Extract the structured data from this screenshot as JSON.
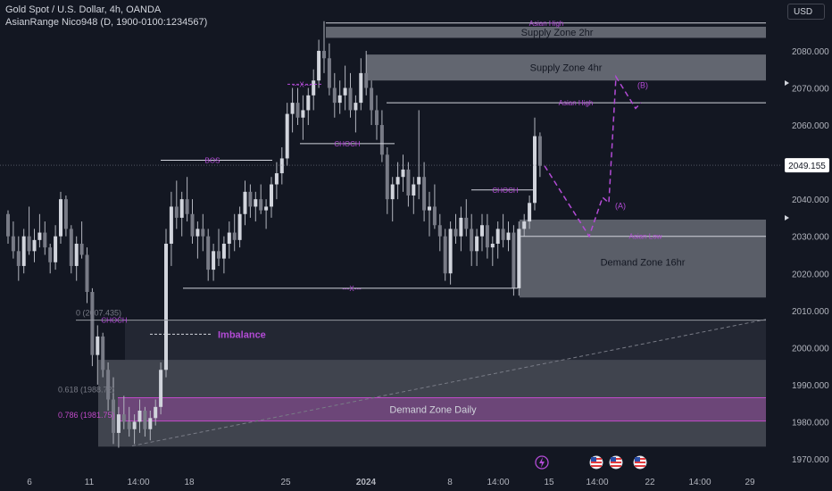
{
  "header": {
    "title": "Gold Spot / U.S. Dollar, 4h, OANDA",
    "indicator": "AsianRange Nico948 (D, 1900-0100:1234567)",
    "currency_button": "USD"
  },
  "colors": {
    "background": "#131722",
    "candle": "#b2b5be",
    "zone": "#ffffff",
    "annotation": "#b34bd6",
    "demand_daily": "#c04ac8",
    "price_label_bg": "#ffffff"
  },
  "chart_data": {
    "type": "candlestick",
    "x_ticks": [
      "6",
      "11",
      "14:00",
      "18",
      "25",
      "2024",
      "8",
      "14:00",
      "15",
      "14:00",
      "22",
      "14:00",
      "29"
    ],
    "y_ticks": [
      1970,
      1980,
      1990,
      2000,
      2010,
      2020,
      2030,
      2040,
      2050,
      2060,
      2070,
      2080
    ],
    "y_tick_labels": [
      "1970.000",
      "1980.000",
      "1990.000",
      "2000.000",
      "2010.000",
      "2020.000",
      "2030.000",
      "2040.000",
      "2050.000",
      "2060.000",
      "2070.000",
      "2080.000"
    ],
    "ylim": [
      1967,
      2090
    ],
    "current_price": 2049.155,
    "current_price_label": "2049.155",
    "candles": [
      [
        2036,
        2037,
        2028,
        2030
      ],
      [
        2030,
        2034,
        2024,
        2026
      ],
      [
        2026,
        2030,
        2018,
        2022
      ],
      [
        2022,
        2032,
        2020,
        2030
      ],
      [
        2030,
        2038,
        2025,
        2026
      ],
      [
        2026,
        2032,
        2023,
        2029
      ],
      [
        2029,
        2036,
        2027,
        2031
      ],
      [
        2031,
        2034,
        2025,
        2027
      ],
      [
        2027,
        2028,
        2020,
        2023
      ],
      [
        2023,
        2033,
        2021,
        2030
      ],
      [
        2030,
        2042,
        2028,
        2040
      ],
      [
        2040,
        2041,
        2030,
        2032
      ],
      [
        2032,
        2033,
        2020,
        2022
      ],
      [
        2022,
        2030,
        2018,
        2028
      ],
      [
        2028,
        2034,
        2024,
        2025
      ],
      [
        2025,
        2027,
        2012,
        2015
      ],
      [
        2015,
        2016,
        1995,
        1998
      ],
      [
        1998,
        2006,
        1990,
        2003
      ],
      [
        2003,
        2004,
        1992,
        1994
      ],
      [
        1994,
        1996,
        1983,
        1986
      ],
      [
        1986,
        1992,
        1974,
        1977
      ],
      [
        1977,
        1984,
        1973,
        1982
      ],
      [
        1982,
        1987,
        1978,
        1980
      ],
      [
        1980,
        1984,
        1976,
        1978
      ],
      [
        1978,
        1982,
        1974,
        1980
      ],
      [
        1980,
        1986,
        1977,
        1983
      ],
      [
        1983,
        1984,
        1976,
        1978
      ],
      [
        1978,
        1983,
        1975,
        1981
      ],
      [
        1981,
        1986,
        1979,
        1984
      ],
      [
        1984,
        1996,
        1982,
        1994
      ],
      [
        1994,
        2032,
        1992,
        2028
      ],
      [
        2028,
        2042,
        2022,
        2038
      ],
      [
        2038,
        2045,
        2032,
        2035
      ],
      [
        2035,
        2042,
        2030,
        2040
      ],
      [
        2040,
        2046,
        2034,
        2036
      ],
      [
        2036,
        2040,
        2028,
        2030
      ],
      [
        2030,
        2034,
        2024,
        2032
      ],
      [
        2032,
        2036,
        2026,
        2030
      ],
      [
        2030,
        2032,
        2018,
        2021
      ],
      [
        2021,
        2028,
        2018,
        2026
      ],
      [
        2026,
        2032,
        2022,
        2024
      ],
      [
        2024,
        2030,
        2020,
        2028
      ],
      [
        2028,
        2034,
        2024,
        2031
      ],
      [
        2031,
        2036,
        2026,
        2029
      ],
      [
        2029,
        2038,
        2027,
        2036
      ],
      [
        2036,
        2045,
        2033,
        2042
      ],
      [
        2042,
        2044,
        2035,
        2038
      ],
      [
        2038,
        2042,
        2034,
        2040
      ],
      [
        2040,
        2044,
        2036,
        2037
      ],
      [
        2037,
        2040,
        2032,
        2038
      ],
      [
        2038,
        2046,
        2035,
        2044
      ],
      [
        2044,
        2050,
        2040,
        2047
      ],
      [
        2047,
        2054,
        2044,
        2051
      ],
      [
        2051,
        2066,
        2049,
        2063
      ],
      [
        2063,
        2070,
        2058,
        2066
      ],
      [
        2066,
        2070,
        2060,
        2062
      ],
      [
        2062,
        2068,
        2056,
        2064
      ],
      [
        2064,
        2070,
        2060,
        2068
      ],
      [
        2068,
        2075,
        2064,
        2072
      ],
      [
        2072,
        2083,
        2070,
        2080
      ],
      [
        2080,
        2088,
        2074,
        2078
      ],
      [
        2078,
        2082,
        2068,
        2070
      ],
      [
        2070,
        2074,
        2062,
        2066
      ],
      [
        2066,
        2072,
        2063,
        2068
      ],
      [
        2068,
        2076,
        2064,
        2070
      ],
      [
        2070,
        2074,
        2062,
        2064
      ],
      [
        2064,
        2068,
        2058,
        2066
      ],
      [
        2066,
        2078,
        2064,
        2074
      ],
      [
        2074,
        2080,
        2068,
        2070
      ],
      [
        2070,
        2072,
        2060,
        2064
      ],
      [
        2064,
        2068,
        2056,
        2060
      ],
      [
        2060,
        2064,
        2050,
        2052
      ],
      [
        2052,
        2054,
        2036,
        2040
      ],
      [
        2040,
        2046,
        2034,
        2044
      ],
      [
        2044,
        2050,
        2040,
        2046
      ],
      [
        2046,
        2052,
        2042,
        2048
      ],
      [
        2048,
        2050,
        2038,
        2041
      ],
      [
        2041,
        2046,
        2036,
        2044
      ],
      [
        2044,
        2064,
        2040,
        2046
      ],
      [
        2046,
        2050,
        2034,
        2037
      ],
      [
        2037,
        2042,
        2030,
        2038
      ],
      [
        2038,
        2044,
        2032,
        2033
      ],
      [
        2033,
        2036,
        2026,
        2030
      ],
      [
        2030,
        2032,
        2018,
        2020
      ],
      [
        2020,
        2034,
        2017,
        2032
      ],
      [
        2032,
        2036,
        2028,
        2030
      ],
      [
        2030,
        2038,
        2026,
        2035
      ],
      [
        2035,
        2040,
        2030,
        2032
      ],
      [
        2032,
        2036,
        2022,
        2026
      ],
      [
        2026,
        2032,
        2022,
        2030
      ],
      [
        2030,
        2036,
        2026,
        2033
      ],
      [
        2033,
        2036,
        2024,
        2027
      ],
      [
        2027,
        2030,
        2022,
        2028
      ],
      [
        2028,
        2034,
        2024,
        2032
      ],
      [
        2032,
        2036,
        2027,
        2029
      ],
      [
        2029,
        2034,
        2026,
        2031
      ],
      [
        2031,
        2033,
        2014,
        2016
      ],
      [
        2016,
        2034,
        2014,
        2032
      ],
      [
        2032,
        2036,
        2030,
        2034
      ],
      [
        2034,
        2041,
        2032,
        2039
      ],
      [
        2039,
        2062,
        2037,
        2057
      ],
      [
        2057,
        2058,
        2046,
        2049
      ]
    ],
    "labels": {
      "asian_high_top": "Asian High",
      "supply_2hr": "Supply Zone 2hr",
      "supply_4hr": "Supply Zone 4hr",
      "asian_high_mid": "Asian High",
      "bos": "BOS",
      "choch_upper": "CHOCH",
      "x_upper": "---X---",
      "choch_right": "CHOCH",
      "demand_16hr": "Demand Zone 16hr",
      "asian_low": "Asian Low",
      "x_lower": "---X---",
      "fib_0": "0 (2007.435)",
      "choch_left": "CHOCH",
      "imbalance": "Imbalance",
      "fib_618": "0.618 (1988.72)",
      "fib_786": "0.786 (1981.75)",
      "demand_daily": "Demand Zone Daily",
      "wave_a": "(A)",
      "wave_b": "(B)"
    },
    "levels": {
      "asian_high_top": 2087.5,
      "supply_2hr": [
        2083.5,
        2086.5
      ],
      "supply_4hr": [
        2072,
        2079
      ],
      "asian_high_mid": 2066,
      "bos": 2050.5,
      "choch_upper": 2055,
      "x_upper": 2071,
      "choch_right": 2042.5,
      "demand_16hr": [
        2013.5,
        2034.5
      ],
      "asian_low": 2030,
      "x_lower": 2016,
      "fib_0": 2007.4,
      "imbalance": [
        2007.4,
        1996.7
      ],
      "fib_618": 1988.7,
      "fib_786": 1981.75,
      "demand_daily": [
        1980.2,
        1986.5
      ],
      "demand_daily_zone": [
        1973.3,
        1996.7
      ]
    },
    "projection": [
      [
        2046,
        2030
      ],
      [
        2058,
        2073
      ],
      [
        2066,
        2064.5
      ]
    ]
  },
  "bottom_icons": [
    "lightning-icon",
    "us-flag-icon",
    "us-flag-icon",
    "us-flag-icon"
  ]
}
